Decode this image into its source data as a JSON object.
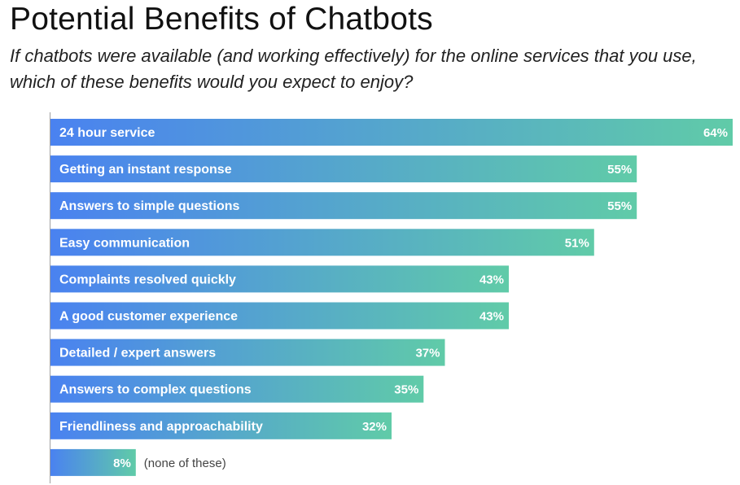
{
  "chart_data": {
    "type": "bar",
    "orientation": "horizontal",
    "title": "Potential Benefits of Chatbots",
    "subtitle": "If chatbots were available (and working effectively) for the online services that you use, which of these benefits would you expect to enjoy?",
    "xlim": [
      0,
      64
    ],
    "grid": false,
    "legend": "none",
    "bar_gradient": [
      "#4a82f0",
      "#60cba8"
    ],
    "axis_color": "#a0a0a0",
    "bars": [
      {
        "category": "24 hour service",
        "value": 64,
        "value_label": "64%"
      },
      {
        "category": "Getting an instant response",
        "value": 55,
        "value_label": "55%"
      },
      {
        "category": "Answers to simple questions",
        "value": 55,
        "value_label": "55%"
      },
      {
        "category": "Easy communication",
        "value": 51,
        "value_label": "51%"
      },
      {
        "category": "Complaints resolved quickly",
        "value": 43,
        "value_label": "43%"
      },
      {
        "category": "A good customer experience",
        "value": 43,
        "value_label": "43%"
      },
      {
        "category": "Detailed / expert answers",
        "value": 37,
        "value_label": "37%"
      },
      {
        "category": "Answers to complex questions",
        "value": 35,
        "value_label": "35%"
      },
      {
        "category": "Friendliness and approachability",
        "value": 32,
        "value_label": "32%"
      },
      {
        "category": "(none of these)",
        "value": 8,
        "value_label": "8%",
        "label_outside": true
      }
    ]
  }
}
